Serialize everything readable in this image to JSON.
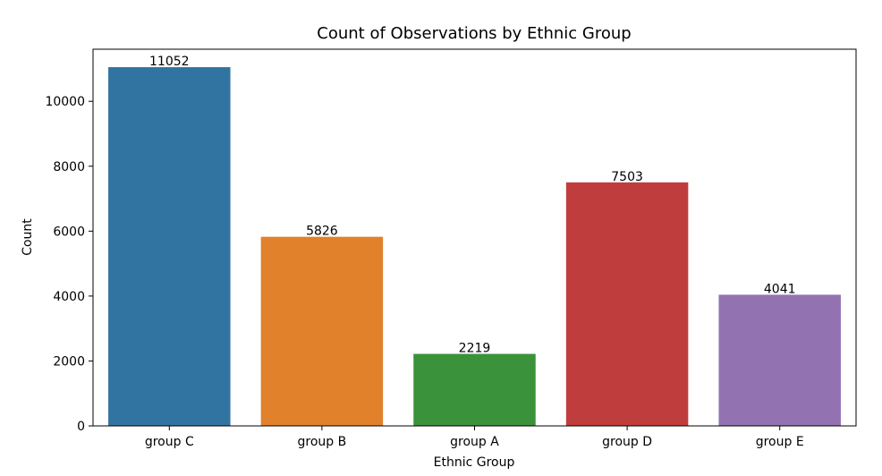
{
  "chart_data": {
    "type": "bar",
    "title": "Count of Observations by Ethnic Group",
    "xlabel": "Ethnic Group",
    "ylabel": "Count",
    "categories": [
      "group C",
      "group B",
      "group A",
      "group D",
      "group E"
    ],
    "values": [
      11052,
      5826,
      2219,
      7503,
      4041
    ],
    "data_labels": [
      "11052",
      "5826",
      "2219",
      "7503",
      "4041"
    ],
    "colors": [
      "#3274a1",
      "#e1812c",
      "#3a923a",
      "#c03d3e",
      "#9372b2"
    ],
    "yticks": [
      0,
      2000,
      4000,
      6000,
      8000,
      10000
    ],
    "ytick_labels": [
      "0",
      "2000",
      "4000",
      "6000",
      "8000",
      "10000"
    ],
    "ylim": [
      0,
      11605
    ],
    "grid": false,
    "legend": false
  }
}
